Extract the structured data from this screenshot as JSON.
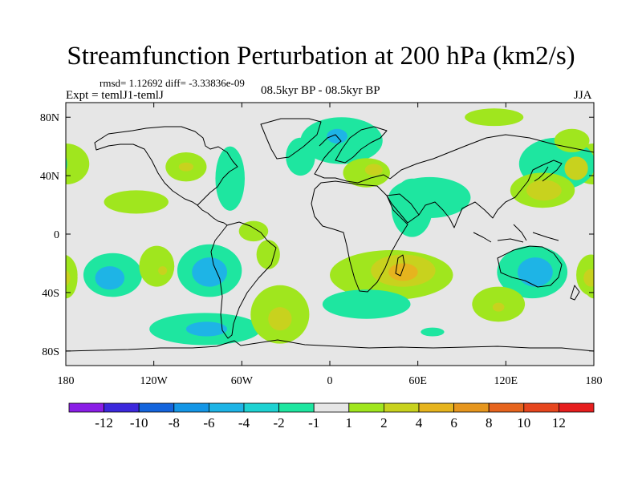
{
  "header": {
    "title": "Streamfunction Perturbation at 200 hPa (km2/s)",
    "stats": "rmsd= 1.12692 diff= -3.33836e-09",
    "experiment": "Expt = temlJ1-temlJ",
    "period": "08.5kyr BP - 08.5kyr BP",
    "season": "JJA"
  },
  "chart_data": {
    "type": "contour-map",
    "title": "Streamfunction Perturbation at 200 hPa (km2/s)",
    "projection": "cylindrical equidistant",
    "xlim": [
      -180,
      180
    ],
    "ylim": [
      -90,
      90
    ],
    "x_ticks": [
      {
        "value": -180,
        "label": "180"
      },
      {
        "value": -120,
        "label": "120W"
      },
      {
        "value": -60,
        "label": "60W"
      },
      {
        "value": 0,
        "label": "0"
      },
      {
        "value": 60,
        "label": "60E"
      },
      {
        "value": 120,
        "label": "120E"
      },
      {
        "value": 180,
        "label": "180"
      }
    ],
    "y_ticks": [
      {
        "value": 80,
        "label": "80N"
      },
      {
        "value": 40,
        "label": "40N"
      },
      {
        "value": 0,
        "label": "0"
      },
      {
        "value": -40,
        "label": "40S"
      },
      {
        "value": -80,
        "label": "80S"
      }
    ],
    "colorbar": {
      "labels": [
        "-12",
        "-10",
        "-8",
        "-6",
        "-4",
        "-2",
        "-1",
        "1",
        "2",
        "4",
        "6",
        "8",
        "10",
        "12"
      ],
      "colors": [
        "#8a1ee6",
        "#3c28dc",
        "#1464dc",
        "#1496e6",
        "#1eb4e6",
        "#1ed2d2",
        "#1ee6a0",
        "#e6e6e6",
        "#a0e61e",
        "#c8d21e",
        "#e6b41e",
        "#e6961e",
        "#e6641e",
        "#e6461e",
        "#e61e1e"
      ]
    },
    "regions": [
      {
        "lon": -180,
        "lat": 48,
        "rlon": 16,
        "rlat": 14,
        "level": "2"
      },
      {
        "lon": -132,
        "lat": 22,
        "rlon": 22,
        "rlat": 8,
        "level": "2"
      },
      {
        "lon": -98,
        "lat": 46,
        "rlon": 14,
        "rlat": 10,
        "level": "2"
      },
      {
        "lon": -98,
        "lat": 46,
        "rlon": 5,
        "rlat": 3,
        "level": "4"
      },
      {
        "lon": -68,
        "lat": 38,
        "rlon": 10,
        "rlat": 22,
        "level": "-2"
      },
      {
        "lon": -52,
        "lat": 2,
        "rlon": 10,
        "rlat": 7,
        "level": "2"
      },
      {
        "lon": -180,
        "lat": -30,
        "rlon": 8,
        "rlat": 14,
        "level": "2"
      },
      {
        "lon": -148,
        "lat": -28,
        "rlon": 20,
        "rlat": 15,
        "level": "-2"
      },
      {
        "lon": -150,
        "lat": -30,
        "rlon": 10,
        "rlat": 8,
        "level": "-4"
      },
      {
        "lon": -118,
        "lat": -22,
        "rlon": 12,
        "rlat": 14,
        "level": "2"
      },
      {
        "lon": -114,
        "lat": -25,
        "rlon": 3,
        "rlat": 3,
        "level": "4"
      },
      {
        "lon": -82,
        "lat": -25,
        "rlon": 22,
        "rlat": 18,
        "level": "-2"
      },
      {
        "lon": -82,
        "lat": -26,
        "rlon": 12,
        "rlat": 10,
        "level": "-4"
      },
      {
        "lon": -42,
        "lat": -14,
        "rlon": 8,
        "rlat": 10,
        "level": "2"
      },
      {
        "lon": -85,
        "lat": -65,
        "rlon": 38,
        "rlat": 11,
        "level": "-2"
      },
      {
        "lon": -84,
        "lat": -65,
        "rlon": 14,
        "rlat": 5,
        "level": "-4"
      },
      {
        "lon": -34,
        "lat": -55,
        "rlon": 20,
        "rlat": 20,
        "level": "2"
      },
      {
        "lon": -34,
        "lat": -58,
        "rlon": 8,
        "rlat": 8,
        "level": "4"
      },
      {
        "lon": 8,
        "lat": 64,
        "rlon": 28,
        "rlat": 16,
        "level": "-2"
      },
      {
        "lon": 5,
        "lat": 67,
        "rlon": 7,
        "rlat": 5,
        "level": "-4"
      },
      {
        "lon": -20,
        "lat": 53,
        "rlon": 10,
        "rlat": 13,
        "level": "-2"
      },
      {
        "lon": 25,
        "lat": 42,
        "rlon": 16,
        "rlat": 10,
        "level": "2"
      },
      {
        "lon": 30,
        "lat": 44,
        "rlon": 6,
        "rlat": 4,
        "level": "4"
      },
      {
        "lon": 68,
        "lat": 25,
        "rlon": 28,
        "rlat": 14,
        "level": "-2"
      },
      {
        "lon": 56,
        "lat": 18,
        "rlon": 14,
        "rlat": 20,
        "level": "-2"
      },
      {
        "lon": 112,
        "lat": 80,
        "rlon": 20,
        "rlat": 6,
        "level": "2"
      },
      {
        "lon": 155,
        "lat": 48,
        "rlon": 26,
        "rlat": 18,
        "level": "-2"
      },
      {
        "lon": 145,
        "lat": 30,
        "rlon": 22,
        "rlat": 12,
        "level": "2"
      },
      {
        "lon": 146,
        "lat": 30,
        "rlon": 12,
        "rlat": 7,
        "level": "4"
      },
      {
        "lon": 165,
        "lat": 64,
        "rlon": 12,
        "rlat": 8,
        "level": "2"
      },
      {
        "lon": 168,
        "lat": 45,
        "rlon": 8,
        "rlat": 8,
        "level": "4"
      },
      {
        "lon": 42,
        "lat": -28,
        "rlon": 42,
        "rlat": 17,
        "level": "2"
      },
      {
        "lon": 50,
        "lat": -25,
        "rlon": 22,
        "rlat": 11,
        "level": "4"
      },
      {
        "lon": 50,
        "lat": -26,
        "rlon": 10,
        "rlat": 6,
        "level": "6"
      },
      {
        "lon": 25,
        "lat": -48,
        "rlon": 30,
        "rlat": 10,
        "level": "-2"
      },
      {
        "lon": 70,
        "lat": -67,
        "rlon": 8,
        "rlat": 3,
        "level": "-2"
      },
      {
        "lon": 138,
        "lat": -26,
        "rlon": 24,
        "rlat": 18,
        "level": "-2"
      },
      {
        "lon": 140,
        "lat": -26,
        "rlon": 12,
        "rlat": 10,
        "level": "-4"
      },
      {
        "lon": 115,
        "lat": -48,
        "rlon": 18,
        "rlat": 12,
        "level": "2"
      },
      {
        "lon": 115,
        "lat": -50,
        "rlon": 4,
        "rlat": 3,
        "level": "4"
      },
      {
        "lon": 178,
        "lat": -28,
        "rlon": 10,
        "rlat": 14,
        "level": "2"
      },
      {
        "lon": 178,
        "lat": -30,
        "rlon": 5,
        "rlat": 6,
        "level": "4"
      }
    ]
  }
}
